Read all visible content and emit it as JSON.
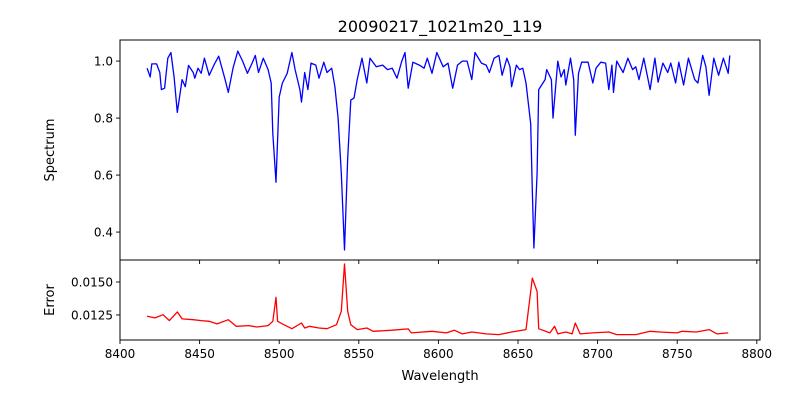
{
  "chart_data": [
    {
      "type": "line",
      "title": "20090217_1021m20_119",
      "xlabel": "",
      "ylabel": "Spectrum",
      "xlim": [
        8400,
        8802
      ],
      "ylim": [
        0.302,
        1.074
      ],
      "xticks": [
        8400,
        8450,
        8500,
        8550,
        8600,
        8650,
        8700,
        8750,
        8800
      ],
      "yticks": [
        0.4,
        0.6,
        0.8,
        1.0
      ],
      "ytick_labels": [
        "0.4",
        "0.6",
        "0.8",
        "1.0"
      ],
      "grid": false,
      "series": [
        {
          "name": "Spectrum",
          "color": "#0000ff",
          "x": [
            8417,
            8419,
            8420,
            8423,
            8425,
            8426,
            8428,
            8430,
            8432,
            8434,
            8436,
            8439,
            8441,
            8443,
            8446,
            8447,
            8449,
            8451,
            8453,
            8456,
            8459,
            8462,
            8466,
            8468,
            8471,
            8474,
            8477,
            8480,
            8483,
            8485,
            8487,
            8490,
            8493,
            8495,
            8496,
            8498,
            8500,
            8502,
            8505,
            8508,
            8510,
            8513,
            8514,
            8516,
            8518,
            8520,
            8523,
            8525,
            8528,
            8530,
            8533,
            8535,
            8537,
            8539,
            8541,
            8543,
            8545,
            8547,
            8549,
            8552,
            8555,
            8557,
            8561,
            8565,
            8568,
            8571,
            8574,
            8577,
            8579,
            8581,
            8584,
            8588,
            8591,
            8593,
            8596,
            8599,
            8603,
            8606,
            8609,
            8612,
            8615,
            8618,
            8621,
            8623,
            8627,
            8630,
            8632,
            8635,
            8638,
            8640,
            8643,
            8645,
            8646,
            8649,
            8651,
            8653,
            8655,
            8658,
            8659,
            8660,
            8662,
            8663,
            8667,
            8668,
            8671,
            8672,
            8675,
            8677,
            8679,
            8680,
            8683,
            8685,
            8686,
            8688,
            8690,
            8694,
            8697,
            8699,
            8702,
            8705,
            8707,
            8709,
            8710,
            8712,
            8716,
            8719,
            8722,
            8724,
            8726,
            8729,
            8733,
            8736,
            8738,
            8741,
            8744,
            8746,
            8749,
            8751,
            8754,
            8757,
            8761,
            8763,
            8766,
            8768,
            8770,
            8773,
            8776,
            8779,
            8782,
            8783
          ],
          "y": [
            0.975,
            0.944,
            0.99,
            0.99,
            0.96,
            0.9,
            0.905,
            1.01,
            1.03,
            0.944,
            0.82,
            0.935,
            0.91,
            0.985,
            0.96,
            0.94,
            0.975,
            0.957,
            1.01,
            0.95,
            0.986,
            1.017,
            0.935,
            0.89,
            0.975,
            1.035,
            1.0,
            0.957,
            0.993,
            1.02,
            0.96,
            1.01,
            0.97,
            0.923,
            0.747,
            0.575,
            0.874,
            0.923,
            0.957,
            1.03,
            0.97,
            0.9,
            0.856,
            0.96,
            0.9,
            0.993,
            0.986,
            0.94,
            0.996,
            0.96,
            0.975,
            0.91,
            0.8,
            0.607,
            0.337,
            0.66,
            0.863,
            0.87,
            0.935,
            1.01,
            0.923,
            1.01,
            0.98,
            0.986,
            0.97,
            0.975,
            0.94,
            1.0,
            1.03,
            0.905,
            0.996,
            0.986,
            0.975,
            1.01,
            0.957,
            1.03,
            0.98,
            0.993,
            0.905,
            0.986,
            1.0,
            1.0,
            0.935,
            1.03,
            0.993,
            0.986,
            0.96,
            1.01,
            1.02,
            0.95,
            1.01,
            0.98,
            0.91,
            0.986,
            0.97,
            0.975,
            0.923,
            0.78,
            0.547,
            0.344,
            0.607,
            0.9,
            0.935,
            0.97,
            0.935,
            0.8,
            1.0,
            0.944,
            0.97,
            0.916,
            1.01,
            0.935,
            0.74,
            0.957,
            0.996,
            0.996,
            0.923,
            0.975,
            0.996,
            0.993,
            0.9,
            0.986,
            0.89,
            1.0,
            0.96,
            1.01,
            0.97,
            0.98,
            0.935,
            1.01,
            0.9,
            1.01,
            0.926,
            0.993,
            0.96,
            0.993,
            0.923,
            0.996,
            0.916,
            1.01,
            0.935,
            0.923,
            1.02,
            0.98,
            0.88,
            1.01,
            0.95,
            1.01,
            0.957,
            1.02
          ]
        }
      ]
    },
    {
      "type": "line",
      "title": "",
      "xlabel": "Wavelength",
      "ylabel": "Error",
      "xlim": [
        8400,
        8802
      ],
      "ylim": [
        0.0106,
        0.01667
      ],
      "xticks": [
        8400,
        8450,
        8500,
        8550,
        8600,
        8650,
        8700,
        8750,
        8800
      ],
      "xtick_labels": [
        "8400",
        "8450",
        "8500",
        "8550",
        "8600",
        "8650",
        "8700",
        "8750",
        "8800"
      ],
      "yticks": [
        0.0125,
        0.015
      ],
      "ytick_labels": [
        "0.0125",
        "0.0150"
      ],
      "grid": false,
      "series": [
        {
          "name": "Error",
          "color": "#ff0000",
          "x": [
            8417,
            8422,
            8427,
            8431,
            8436,
            8439,
            8446,
            8451,
            8456,
            8461,
            8468,
            8473,
            8481,
            8486,
            8493,
            8496,
            8498,
            8499,
            8502,
            8508,
            8514,
            8516,
            8519,
            8525,
            8530,
            8536,
            8539,
            8541,
            8543,
            8545,
            8549,
            8555,
            8559,
            8571,
            8581,
            8583,
            8596,
            8605,
            8610,
            8615,
            8621,
            8630,
            8638,
            8646,
            8655,
            8658,
            8659,
            8662,
            8663,
            8670,
            8673,
            8675,
            8680,
            8684,
            8686,
            8689,
            8697,
            8707,
            8712,
            8724,
            8733,
            8739,
            8750,
            8753,
            8762,
            8770,
            8775,
            8782
          ],
          "y": [
            0.0124,
            0.01228,
            0.01252,
            0.01207,
            0.01273,
            0.0122,
            0.01214,
            0.01207,
            0.01202,
            0.01182,
            0.01214,
            0.01164,
            0.01169,
            0.01159,
            0.01169,
            0.01202,
            0.01384,
            0.01202,
            0.01182,
            0.01146,
            0.01189,
            0.01151,
            0.01164,
            0.01151,
            0.01146,
            0.01176,
            0.01278,
            0.01637,
            0.01278,
            0.01176,
            0.01139,
            0.01151,
            0.01126,
            0.01134,
            0.01144,
            0.01114,
            0.01126,
            0.01114,
            0.01134,
            0.01106,
            0.01121,
            0.01106,
            0.01101,
            0.01121,
            0.01139,
            0.01429,
            0.0153,
            0.01429,
            0.01146,
            0.01114,
            0.01164,
            0.01106,
            0.01121,
            0.01106,
            0.01189,
            0.01106,
            0.01114,
            0.01121,
            0.01101,
            0.01101,
            0.01126,
            0.01121,
            0.01114,
            0.01126,
            0.01121,
            0.01139,
            0.01106,
            0.01114
          ]
        }
      ]
    }
  ]
}
